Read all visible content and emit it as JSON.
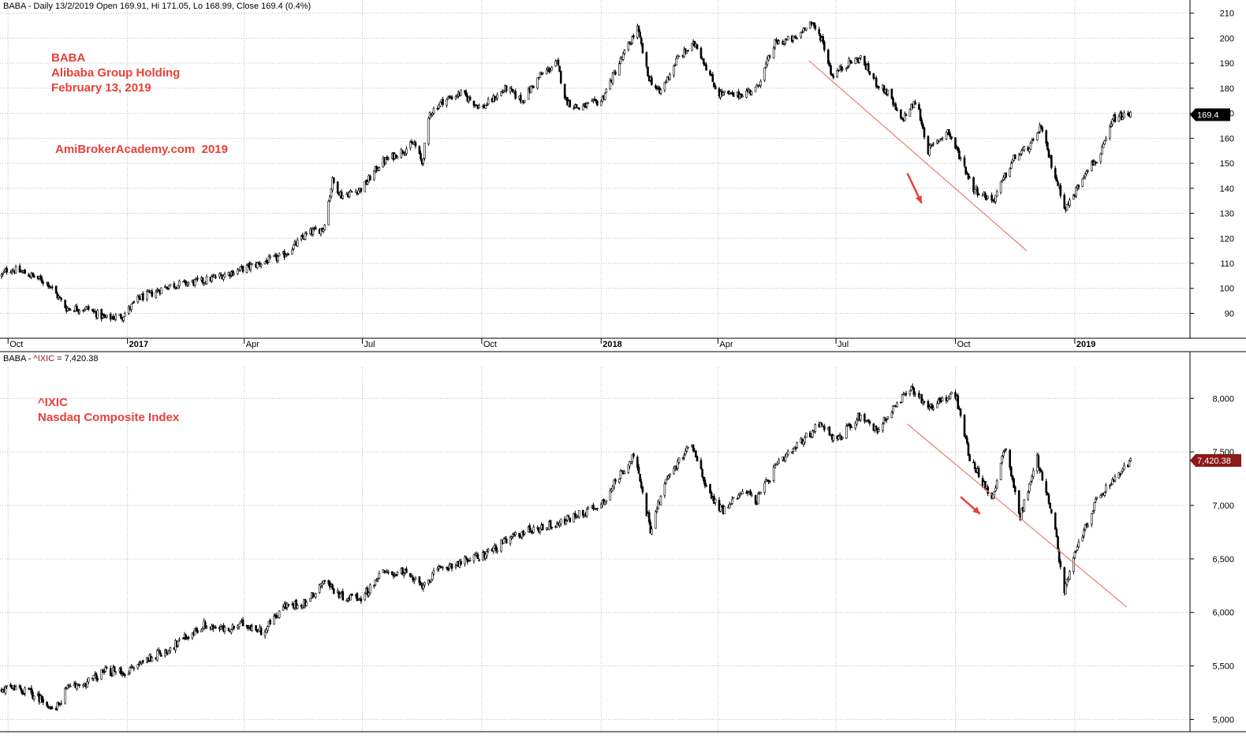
{
  "top_panel": {
    "header": "BABA - Daily 13/2/2019 Open 169.91, Hi 171.05, Lo 168.99, Close 169.4 (0.4%)",
    "annotations": [
      "BABA",
      "Alibaba Group Holding",
      "February 13, 2019",
      "AmiBrokerAcademy.com  2019"
    ],
    "last_price_label": "169.4"
  },
  "bottom_panel": {
    "header_prefix": "BABA - ",
    "header_symbol": "^IXIC",
    "header_suffix": " = 7,420.38",
    "annotations": [
      "^IXIC",
      "Nasdaq Composite Index"
    ],
    "last_price_label": "7,420.38"
  },
  "colors": {
    "annotation": "#e8403a",
    "trendline": "#f07b73",
    "candle": "#000000",
    "badge_top": "#000000",
    "badge_bottom": "#8b1a1a"
  },
  "chart_data": [
    {
      "type": "candlestick",
      "name": "BABA",
      "x_labels": [
        "Oct",
        "2017",
        "Apr",
        "Jul",
        "Oct",
        "2018",
        "Apr",
        "Jul",
        "Oct",
        "2019"
      ],
      "y_ticks": [
        90,
        100,
        110,
        120,
        130,
        140,
        150,
        160,
        170,
        180,
        190,
        200,
        210
      ],
      "y_tick_labels": [
        "90",
        "100",
        "110",
        "120",
        "130",
        "140",
        "150",
        "160",
        "170",
        "180",
        "190",
        "200",
        "210"
      ],
      "ylim": [
        81,
        214
      ],
      "close_path": [
        [
          "2016-09-26",
          105
        ],
        [
          "2016-10-01",
          108
        ],
        [
          "2016-10-15",
          106
        ],
        [
          "2016-11-01",
          102
        ],
        [
          "2016-11-15",
          92
        ],
        [
          "2016-12-01",
          92
        ],
        [
          "2016-12-15",
          88
        ],
        [
          "2016-12-28",
          89
        ],
        [
          "2017-01-10",
          96
        ],
        [
          "2017-01-20",
          98
        ],
        [
          "2017-02-01",
          101
        ],
        [
          "2017-03-01",
          103
        ],
        [
          "2017-04-01",
          108
        ],
        [
          "2017-05-01",
          113
        ],
        [
          "2017-05-20",
          122
        ],
        [
          "2017-06-01",
          124
        ],
        [
          "2017-06-08",
          143
        ],
        [
          "2017-06-15",
          137
        ],
        [
          "2017-07-01",
          140
        ],
        [
          "2017-07-15",
          150
        ],
        [
          "2017-08-01",
          155
        ],
        [
          "2017-08-10",
          158
        ],
        [
          "2017-08-16",
          150
        ],
        [
          "2017-08-22",
          170
        ],
        [
          "2017-09-01",
          175
        ],
        [
          "2017-09-15",
          178
        ],
        [
          "2017-10-01",
          172
        ],
        [
          "2017-10-20",
          180
        ],
        [
          "2017-11-01",
          175
        ],
        [
          "2017-11-15",
          185
        ],
        [
          "2017-11-28",
          190
        ],
        [
          "2017-12-05",
          175
        ],
        [
          "2017-12-15",
          172
        ],
        [
          "2018-01-01",
          175
        ],
        [
          "2018-01-15",
          190
        ],
        [
          "2018-01-29",
          204
        ],
        [
          "2018-02-06",
          185
        ],
        [
          "2018-02-15",
          178
        ],
        [
          "2018-03-01",
          192
        ],
        [
          "2018-03-15",
          198
        ],
        [
          "2018-04-01",
          178
        ],
        [
          "2018-04-15",
          177
        ],
        [
          "2018-05-01",
          180
        ],
        [
          "2018-05-15",
          198
        ],
        [
          "2018-06-01",
          200
        ],
        [
          "2018-06-10",
          207
        ],
        [
          "2018-06-20",
          200
        ],
        [
          "2018-06-28",
          185
        ],
        [
          "2018-07-10",
          190
        ],
        [
          "2018-07-20",
          192
        ],
        [
          "2018-08-01",
          182
        ],
        [
          "2018-08-10",
          178
        ],
        [
          "2018-08-20",
          167
        ],
        [
          "2018-09-01",
          175
        ],
        [
          "2018-09-10",
          155
        ],
        [
          "2018-09-25",
          163
        ],
        [
          "2018-10-05",
          152
        ],
        [
          "2018-10-15",
          140
        ],
        [
          "2018-10-30",
          135
        ],
        [
          "2018-11-15",
          152
        ],
        [
          "2018-11-30",
          158
        ],
        [
          "2018-12-05",
          165
        ],
        [
          "2018-12-15",
          148
        ],
        [
          "2018-12-25",
          132
        ],
        [
          "2019-01-01",
          138
        ],
        [
          "2019-01-10",
          148
        ],
        [
          "2019-01-20",
          152
        ],
        [
          "2019-01-31",
          168
        ],
        [
          "2019-02-13",
          169.4
        ]
      ],
      "trendline": [
        [
          "2018-06-10",
          191
        ],
        [
          "2018-11-25",
          115
        ]
      ],
      "arrow": [
        [
          "2018-08-25",
          146
        ],
        [
          "2018-09-05",
          134
        ]
      ]
    },
    {
      "type": "candlestick",
      "name": "^IXIC",
      "x_labels": [],
      "y_ticks": [
        5000,
        5500,
        6000,
        6500,
        7000,
        7500,
        8000
      ],
      "y_tick_labels": [
        "5,000",
        "5,500",
        "6,000",
        "6,500",
        "7,000",
        "7,500",
        "8,000"
      ],
      "ylim": [
        4900,
        8260
      ],
      "close_path": [
        [
          "2016-09-26",
          5290
        ],
        [
          "2016-10-15",
          5270
        ],
        [
          "2016-11-01",
          5150
        ],
        [
          "2016-11-05",
          5050
        ],
        [
          "2016-11-15",
          5280
        ],
        [
          "2016-12-01",
          5350
        ],
        [
          "2016-12-15",
          5450
        ],
        [
          "2017-01-01",
          5440
        ],
        [
          "2017-01-15",
          5560
        ],
        [
          "2017-02-01",
          5650
        ],
        [
          "2017-03-01",
          5880
        ],
        [
          "2017-03-20",
          5830
        ],
        [
          "2017-04-01",
          5900
        ],
        [
          "2017-04-15",
          5820
        ],
        [
          "2017-05-01",
          6050
        ],
        [
          "2017-05-20",
          6100
        ],
        [
          "2017-06-01",
          6300
        ],
        [
          "2017-06-15",
          6150
        ],
        [
          "2017-07-01",
          6140
        ],
        [
          "2017-07-15",
          6360
        ],
        [
          "2017-08-01",
          6380
        ],
        [
          "2017-08-15",
          6250
        ],
        [
          "2017-09-01",
          6420
        ],
        [
          "2017-10-01",
          6530
        ],
        [
          "2017-11-01",
          6750
        ],
        [
          "2017-12-01",
          6840
        ],
        [
          "2018-01-01",
          7010
        ],
        [
          "2018-01-26",
          7480
        ],
        [
          "2018-02-08",
          6780
        ],
        [
          "2018-02-20",
          7230
        ],
        [
          "2018-03-12",
          7590
        ],
        [
          "2018-03-25",
          7100
        ],
        [
          "2018-04-05",
          6950
        ],
        [
          "2018-04-20",
          7150
        ],
        [
          "2018-05-01",
          7050
        ],
        [
          "2018-05-15",
          7350
        ],
        [
          "2018-06-01",
          7550
        ],
        [
          "2018-06-20",
          7780
        ],
        [
          "2018-07-01",
          7600
        ],
        [
          "2018-07-20",
          7850
        ],
        [
          "2018-08-01",
          7700
        ],
        [
          "2018-08-28",
          8100
        ],
        [
          "2018-09-10",
          7920
        ],
        [
          "2018-10-01",
          8040
        ],
        [
          "2018-10-12",
          7450
        ],
        [
          "2018-10-29",
          7050
        ],
        [
          "2018-11-08",
          7550
        ],
        [
          "2018-11-20",
          6900
        ],
        [
          "2018-12-03",
          7440
        ],
        [
          "2018-12-15",
          6900
        ],
        [
          "2018-12-24",
          6200
        ],
        [
          "2019-01-04",
          6650
        ],
        [
          "2019-01-18",
          7050
        ],
        [
          "2019-02-13",
          7420.38
        ]
      ],
      "trendline": [
        [
          "2018-08-25",
          7760
        ],
        [
          "2019-02-10",
          6050
        ]
      ],
      "arrow": [
        [
          "2018-10-05",
          7080
        ],
        [
          "2018-10-20",
          6920
        ]
      ]
    }
  ]
}
